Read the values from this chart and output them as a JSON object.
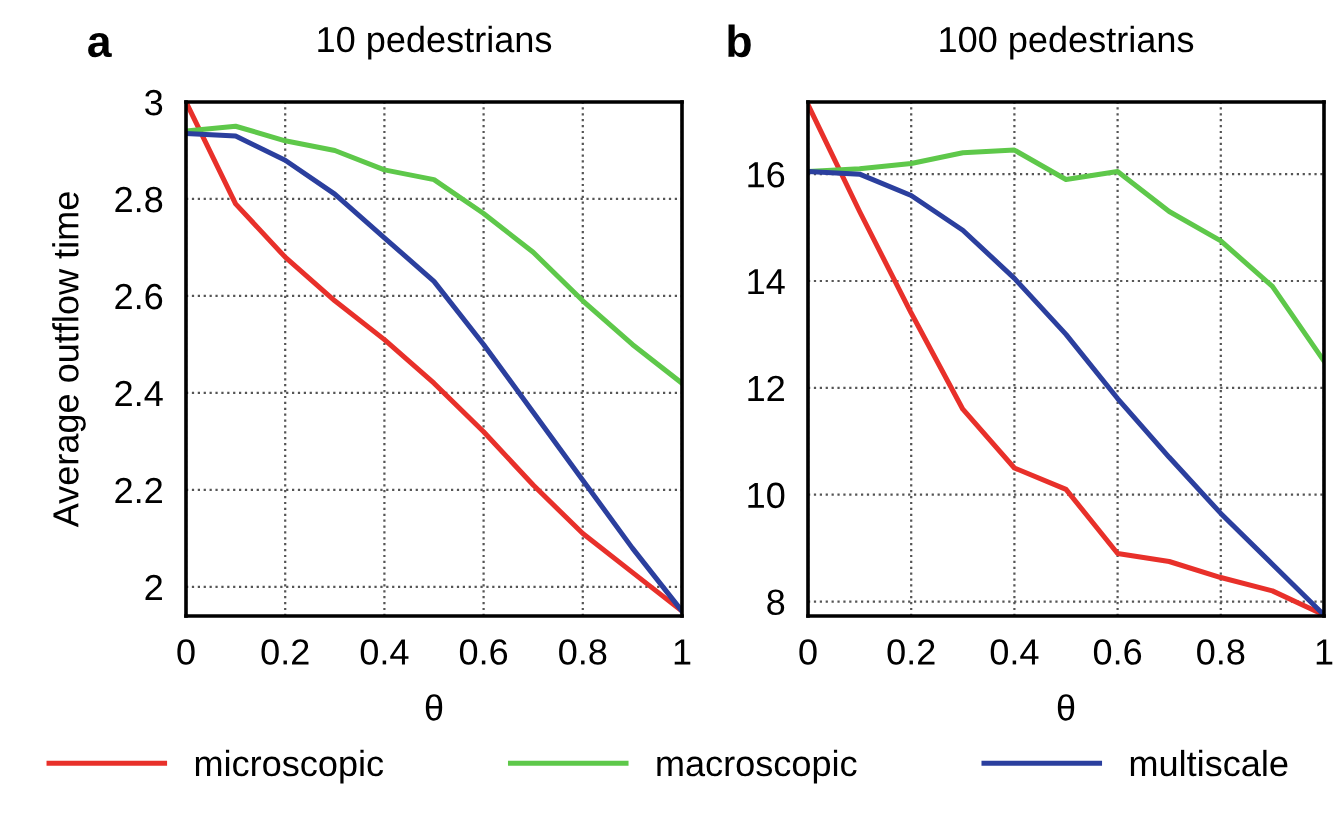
{
  "chart_data": [
    {
      "type": "line",
      "title": "10 pedestrians",
      "annotations": [
        "a"
      ],
      "xlabel": "θ",
      "ylabel": "Average outflow time",
      "x": [
        0,
        0.1,
        0.2,
        0.3,
        0.4,
        0.5,
        0.6,
        0.7,
        0.8,
        0.9,
        1
      ],
      "xlim": [
        0,
        1
      ],
      "xticks": [
        0,
        0.2,
        0.4,
        0.6,
        0.8,
        1
      ],
      "ylim": [
        1.94,
        3.0
      ],
      "yticks": [
        2,
        2.2,
        2.4,
        2.6,
        2.8,
        3
      ],
      "grid": true,
      "legend": "bottom",
      "series": [
        {
          "name": "microscopic",
          "color": "#e8302a",
          "values": [
            3.0,
            2.79,
            2.68,
            2.59,
            2.51,
            2.42,
            2.32,
            2.21,
            2.11,
            2.03,
            1.95
          ]
        },
        {
          "name": "macroscopic",
          "color": "#5ec84a",
          "values": [
            2.94,
            2.95,
            2.92,
            2.9,
            2.86,
            2.84,
            2.77,
            2.69,
            2.59,
            2.5,
            2.42
          ]
        },
        {
          "name": "multiscale",
          "color": "#2b3f9e",
          "values": [
            2.935,
            2.93,
            2.88,
            2.81,
            2.72,
            2.63,
            2.5,
            2.36,
            2.22,
            2.08,
            1.95
          ]
        }
      ]
    },
    {
      "type": "line",
      "title": "100 pedestrians",
      "annotations": [
        "b"
      ],
      "xlabel": "θ",
      "x": [
        0,
        0.1,
        0.2,
        0.3,
        0.4,
        0.5,
        0.6,
        0.7,
        0.8,
        0.9,
        1
      ],
      "xlim": [
        0,
        1
      ],
      "xticks": [
        0,
        0.2,
        0.4,
        0.6,
        0.8,
        1
      ],
      "ylim": [
        7.73,
        17.35
      ],
      "yticks": [
        8,
        10,
        12,
        14,
        16
      ],
      "grid": true,
      "series": [
        {
          "color": "#e8302a",
          "values": [
            17.3,
            15.3,
            13.4,
            11.6,
            10.5,
            10.1,
            8.9,
            8.75,
            8.45,
            8.2,
            7.75
          ]
        },
        {
          "color": "#5ec84a",
          "values": [
            16.05,
            16.1,
            16.2,
            16.4,
            16.45,
            15.9,
            16.05,
            15.3,
            14.75,
            13.9,
            12.5
          ]
        },
        {
          "color": "#2b3f9e",
          "values": [
            16.05,
            16.0,
            15.6,
            14.95,
            14.05,
            13.0,
            11.8,
            10.7,
            9.65,
            8.7,
            7.75
          ]
        }
      ]
    }
  ]
}
